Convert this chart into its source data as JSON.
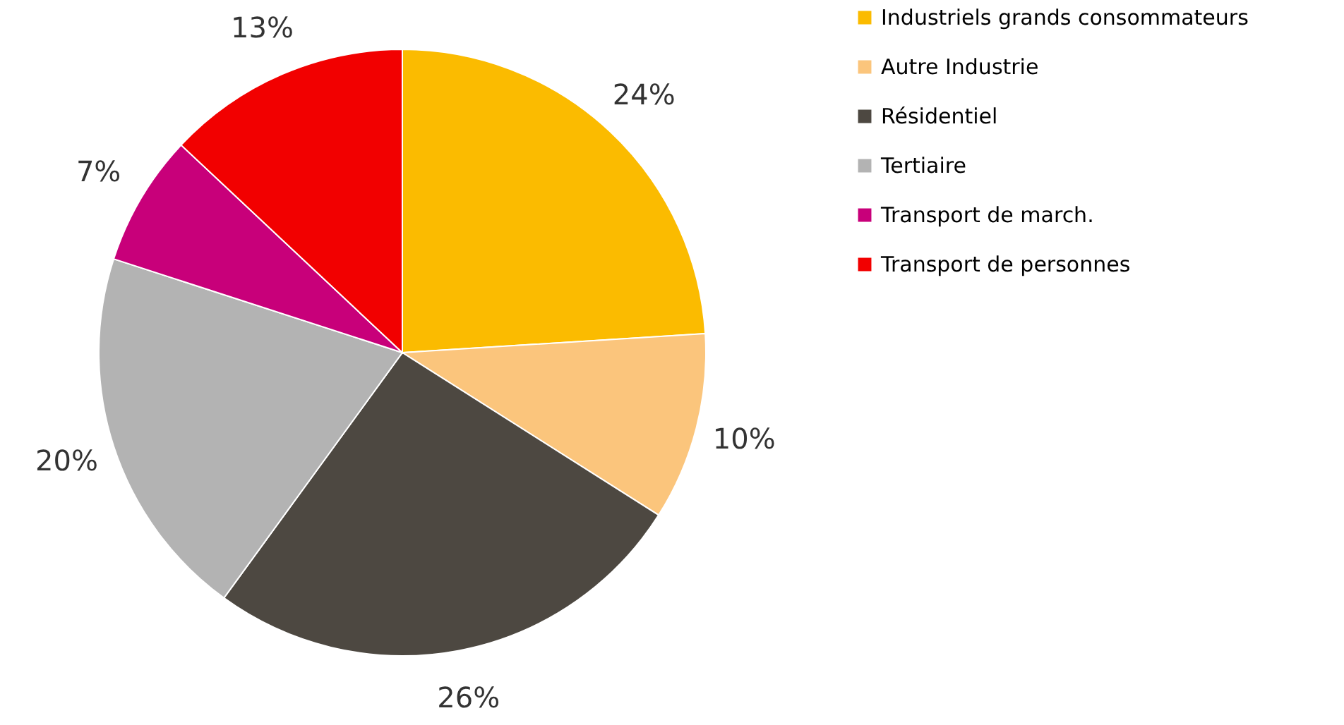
{
  "chart_data": {
    "type": "pie",
    "categories": [
      "Industriels grands consommateurs",
      "Autre Industrie",
      "Résidentiel",
      "Tertiaire",
      "Transport de march.",
      "Transport de personnes"
    ],
    "values": [
      24,
      10,
      26,
      20,
      7,
      13
    ],
    "value_labels": [
      "24%",
      "10%",
      "26%",
      "20%",
      "7%",
      "13%"
    ],
    "colors": [
      "#fbbb00",
      "#fbc57c",
      "#4d4841",
      "#b3b3b3",
      "#c8007a",
      "#f20000"
    ],
    "legend": "right"
  }
}
